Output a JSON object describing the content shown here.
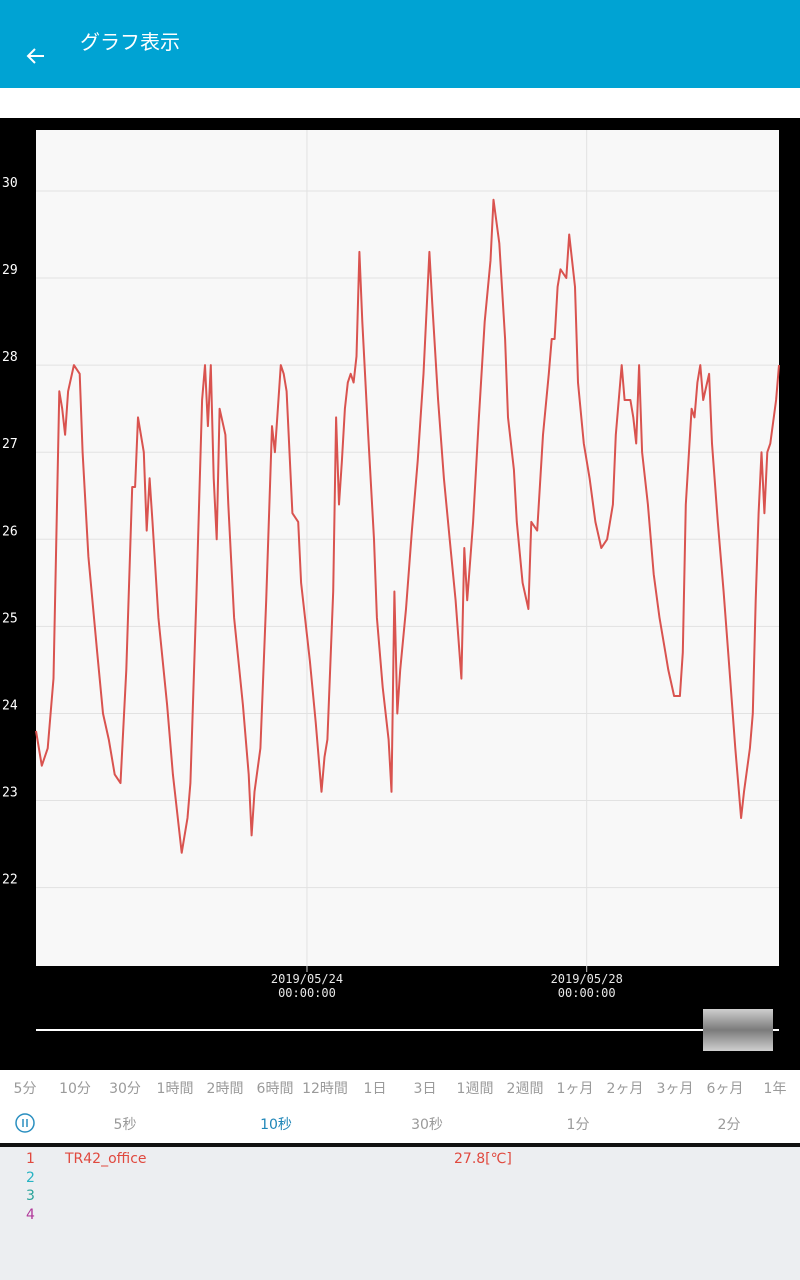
{
  "header": {
    "title": "グラフ表示"
  },
  "chart_data": {
    "type": "line",
    "x": [
      "2019/05/20 03:00:00",
      "2019/05/20 05:00:00",
      "2019/05/20 07:00:00",
      "2019/05/20 09:00:00",
      "2019/05/20 11:00:00",
      "2019/05/20 12:00:00",
      "2019/05/20 13:00:00",
      "2019/05/20 14:00:00",
      "2019/05/20 16:00:00",
      "2019/05/20 18:00:00",
      "2019/05/20 19:00:00",
      "2019/05/20 21:00:00",
      "2019/05/21 00:00:00",
      "2019/05/21 02:00:00",
      "2019/05/21 04:00:00",
      "2019/05/21 06:00:00",
      "2019/05/21 08:00:00",
      "2019/05/21 10:00:00",
      "2019/05/21 12:00:00",
      "2019/05/21 13:00:00",
      "2019/05/21 14:00:00",
      "2019/05/21 16:00:00",
      "2019/05/21 17:00:00",
      "2019/05/21 18:00:00",
      "2019/05/21 19:00:00",
      "2019/05/21 21:00:00",
      "2019/05/22 00:00:00",
      "2019/05/22 02:00:00",
      "2019/05/22 05:00:00",
      "2019/05/22 07:00:00",
      "2019/05/22 08:00:00",
      "2019/05/22 10:00:00",
      "2019/05/22 12:00:00",
      "2019/05/22 13:00:00",
      "2019/05/22 14:00:00",
      "2019/05/22 15:00:00",
      "2019/05/22 16:00:00",
      "2019/05/22 17:00:00",
      "2019/05/22 18:00:00",
      "2019/05/22 20:00:00",
      "2019/05/22 21:00:00",
      "2019/05/22 23:00:00",
      "2019/05/23 02:00:00",
      "2019/05/23 04:00:00",
      "2019/05/23 05:00:00",
      "2019/05/23 06:00:00",
      "2019/05/23 08:00:00",
      "2019/05/23 10:00:00",
      "2019/05/23 12:00:00",
      "2019/05/23 13:00:00",
      "2019/05/23 15:00:00",
      "2019/05/23 16:00:00",
      "2019/05/23 17:00:00",
      "2019/05/23 19:00:00",
      "2019/05/23 21:00:00",
      "2019/05/23 22:00:00",
      "2019/05/24 01:00:00",
      "2019/05/24 03:00:00",
      "2019/05/24 05:00:00",
      "2019/05/24 06:00:00",
      "2019/05/24 07:00:00",
      "2019/05/24 09:00:00",
      "2019/05/24 10:00:00",
      "2019/05/24 11:00:00",
      "2019/05/24 12:00:00",
      "2019/05/24 13:00:00",
      "2019/05/24 14:00:00",
      "2019/05/24 15:00:00",
      "2019/05/24 16:00:00",
      "2019/05/24 17:00:00",
      "2019/05/24 18:00:00",
      "2019/05/24 19:00:00",
      "2019/05/24 21:00:00",
      "2019/05/24 23:00:00",
      "2019/05/25 00:00:00",
      "2019/05/25 02:00:00",
      "2019/05/25 04:00:00",
      "2019/05/25 05:00:00",
      "2019/05/25 06:00:00",
      "2019/05/25 07:00:00",
      "2019/05/25 08:00:00",
      "2019/05/25 10:00:00",
      "2019/05/25 12:00:00",
      "2019/05/25 14:00:00",
      "2019/05/25 16:00:00",
      "2019/05/25 18:00:00",
      "2019/05/25 19:00:00",
      "2019/05/25 21:00:00",
      "2019/05/25 23:00:00",
      "2019/05/26 01:00:00",
      "2019/05/26 03:00:00",
      "2019/05/26 05:00:00",
      "2019/05/26 06:00:00",
      "2019/05/26 07:00:00",
      "2019/05/26 09:00:00",
      "2019/05/26 11:00:00",
      "2019/05/26 13:00:00",
      "2019/05/26 15:00:00",
      "2019/05/26 16:00:00",
      "2019/05/26 18:00:00",
      "2019/05/26 20:00:00",
      "2019/05/26 21:00:00",
      "2019/05/26 23:00:00",
      "2019/05/27 00:00:00",
      "2019/05/27 02:00:00",
      "2019/05/27 04:00:00",
      "2019/05/27 05:00:00",
      "2019/05/27 07:00:00",
      "2019/05/27 09:00:00",
      "2019/05/27 11:00:00",
      "2019/05/27 12:00:00",
      "2019/05/27 13:00:00",
      "2019/05/27 14:00:00",
      "2019/05/27 15:00:00",
      "2019/05/27 17:00:00",
      "2019/05/27 18:00:00",
      "2019/05/27 20:00:00",
      "2019/05/27 21:00:00",
      "2019/05/27 23:00:00",
      "2019/05/28 01:00:00",
      "2019/05/28 03:00:00",
      "2019/05/28 05:00:00",
      "2019/05/28 07:00:00",
      "2019/05/28 09:00:00",
      "2019/05/28 10:00:00",
      "2019/05/28 12:00:00",
      "2019/05/28 13:00:00",
      "2019/05/28 15:00:00",
      "2019/05/28 16:00:00",
      "2019/05/28 17:00:00",
      "2019/05/28 18:00:00",
      "2019/05/28 19:00:00",
      "2019/05/28 21:00:00",
      "2019/05/28 23:00:00",
      "2019/05/29 01:00:00",
      "2019/05/29 03:00:00",
      "2019/05/29 04:00:00",
      "2019/05/29 06:00:00",
      "2019/05/29 08:00:00",
      "2019/05/29 09:00:00",
      "2019/05/29 10:00:00",
      "2019/05/29 12:00:00",
      "2019/05/29 13:00:00",
      "2019/05/29 14:00:00",
      "2019/05/29 15:00:00",
      "2019/05/29 16:00:00",
      "2019/05/29 18:00:00",
      "2019/05/29 19:00:00",
      "2019/05/29 21:00:00",
      "2019/05/29 23:00:00",
      "2019/05/30 01:00:00",
      "2019/05/30 03:00:00",
      "2019/05/30 05:00:00",
      "2019/05/30 06:00:00",
      "2019/05/30 08:00:00",
      "2019/05/30 09:00:00",
      "2019/05/30 10:00:00",
      "2019/05/30 11:00:00",
      "2019/05/30 12:00:00",
      "2019/05/30 13:00:00",
      "2019/05/30 14:00:00",
      "2019/05/30 15:00:00",
      "2019/05/30 17:00:00",
      "2019/05/30 18:00:00"
    ],
    "series": [
      {
        "color": "#d9534f",
        "values": [
          23.8,
          23.4,
          23.6,
          24.4,
          27.7,
          27.5,
          27.2,
          27.7,
          28.0,
          27.9,
          27.0,
          25.8,
          24.7,
          24.0,
          23.7,
          23.3,
          23.2,
          24.5,
          26.6,
          26.6,
          27.4,
          27.0,
          26.1,
          26.7,
          26.2,
          25.1,
          24.1,
          23.3,
          22.4,
          22.8,
          23.2,
          25.3,
          27.6,
          28.0,
          27.3,
          28.0,
          26.7,
          26.0,
          27.5,
          27.2,
          26.4,
          25.1,
          24.1,
          23.3,
          22.6,
          23.1,
          23.6,
          25.3,
          27.3,
          27.0,
          28.0,
          27.9,
          27.7,
          26.3,
          26.2,
          25.5,
          24.6,
          23.9,
          23.1,
          23.5,
          23.7,
          25.4,
          27.4,
          26.4,
          26.9,
          27.5,
          27.8,
          27.9,
          27.8,
          28.1,
          29.3,
          28.5,
          27.2,
          26.0,
          25.1,
          24.3,
          23.7,
          23.1,
          25.4,
          24.0,
          24.5,
          25.2,
          26.1,
          26.9,
          27.9,
          29.3,
          28.7,
          27.6,
          26.7,
          26.0,
          25.3,
          24.4,
          25.9,
          25.3,
          26.2,
          27.4,
          28.5,
          29.2,
          29.9,
          29.4,
          28.3,
          27.4,
          26.8,
          26.2,
          25.5,
          25.2,
          26.2,
          26.1,
          27.2,
          27.9,
          28.3,
          28.3,
          28.9,
          29.1,
          29.0,
          29.5,
          28.9,
          27.8,
          27.1,
          26.7,
          26.2,
          25.9,
          26.0,
          26.4,
          27.2,
          28.0,
          27.6,
          27.6,
          27.4,
          27.1,
          28.0,
          27.0,
          26.4,
          25.6,
          25.1,
          24.7,
          24.5,
          24.2,
          24.2,
          24.7,
          26.4,
          27.5,
          27.4,
          27.8,
          28.0,
          27.6,
          27.9,
          27.1,
          26.2,
          25.4,
          24.5,
          23.6,
          22.8,
          23.1,
          23.6,
          24.0,
          25.3,
          26.3,
          27.0,
          26.3,
          27.0,
          27.1,
          27.6,
          28.0
        ]
      }
    ],
    "xlim": [
      "2019/05/20 03:00:00",
      "2019/05/30 18:00:00"
    ],
    "xticks": [
      {
        "value": "2019/05/24 00:00:00",
        "label": "2019/05/24\n00:00:00"
      },
      {
        "value": "2019/05/28 00:00:00",
        "label": "2019/05/28\n00:00:00"
      }
    ],
    "ylim": [
      21.1,
      30.7
    ],
    "yticks": [
      22,
      23,
      24,
      25,
      26,
      27,
      28,
      29,
      30
    ],
    "grid": true
  },
  "periods": [
    "5分",
    "10分",
    "30分",
    "1時間",
    "2時間",
    "6時間",
    "12時間",
    "1日",
    "3日",
    "1週間",
    "2週間",
    "1ヶ月",
    "2ヶ月",
    "3ヶ月",
    "6ヶ月",
    "1年"
  ],
  "intervals": [
    "5秒",
    "10秒",
    "30秒",
    "1分",
    "2分"
  ],
  "selected_interval": 1,
  "channels": [
    {
      "number": "1",
      "name": "TR42_office",
      "reading": "27.8[℃]",
      "color": "#e0493f"
    },
    {
      "number": "2",
      "color": "#27b3c3"
    },
    {
      "number": "3",
      "color": "#2aa39a"
    },
    {
      "number": "4",
      "color": "#b0389a"
    }
  ]
}
